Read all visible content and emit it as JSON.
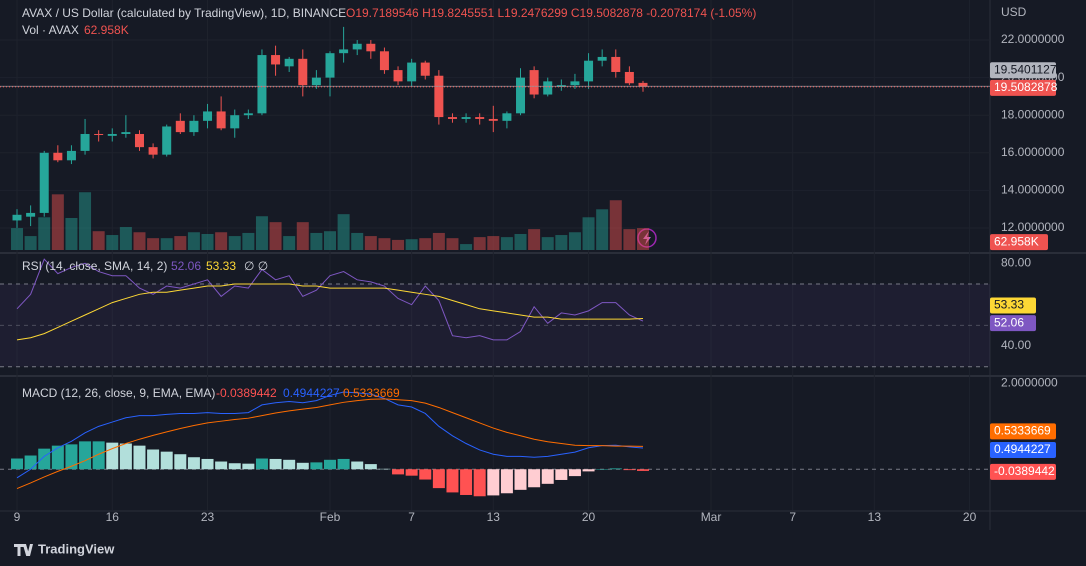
{
  "chart_data": [
    {
      "type": "candlestick",
      "title": "AVAX / US Dollar (calculated by TradingView), 1D, BINANCE",
      "legend_text": "O19.7189546 H19.8245551 L19.2476299 C19.5082878 -0.2078174 (-1.05%)",
      "currency": "USD",
      "up_color": "#26a69a",
      "down_color": "#ef5350",
      "open": [
        12.4,
        12.6,
        12.8,
        16.0,
        15.6,
        16.1,
        17.0,
        16.9,
        17.0,
        17.0,
        16.3,
        15.9,
        17.7,
        17.1,
        17.7,
        18.2,
        17.3,
        18.0,
        18.1,
        21.2,
        20.6,
        21.0,
        19.6,
        20.0,
        21.3,
        21.5,
        21.8,
        21.4,
        20.4,
        19.8,
        20.8,
        20.1,
        17.9,
        17.8,
        17.9,
        17.8,
        17.7,
        18.1,
        20.4,
        19.1,
        19.5,
        19.6,
        19.8,
        20.9,
        21.1,
        20.3,
        19.7189546
      ],
      "high": [
        13.0,
        13.2,
        16.1,
        16.4,
        16.4,
        17.8,
        17.2,
        17.3,
        18.0,
        17.2,
        16.5,
        17.5,
        18.1,
        18.0,
        18.6,
        19.0,
        18.3,
        18.3,
        21.5,
        21.7,
        21.1,
        21.5,
        20.4,
        21.4,
        22.7,
        22.0,
        22.0,
        21.6,
        20.6,
        21.0,
        20.9,
        20.4,
        18.1,
        18.1,
        18.1,
        18.5,
        18.2,
        20.5,
        20.6,
        20.0,
        19.9,
        20.2,
        21.3,
        21.5,
        21.5,
        20.6,
        19.8245551
      ],
      "low": [
        12.0,
        12.1,
        12.6,
        15.5,
        15.4,
        15.9,
        16.6,
        16.6,
        16.8,
        16.1,
        15.7,
        15.8,
        17.0,
        16.9,
        17.3,
        17.2,
        16.8,
        17.8,
        18.0,
        20.1,
        20.3,
        19.0,
        19.4,
        19.0,
        20.8,
        21.2,
        21.0,
        20.2,
        19.6,
        19.5,
        19.9,
        17.5,
        17.6,
        17.6,
        17.5,
        17.1,
        17.3,
        18.0,
        18.9,
        19.0,
        19.3,
        19.4,
        19.4,
        20.6,
        20.0,
        19.6,
        19.2476299
      ],
      "close": [
        12.7,
        12.8,
        16.0,
        15.6,
        16.1,
        17.0,
        16.95,
        17.0,
        17.1,
        16.3,
        15.9,
        17.4,
        17.1,
        17.7,
        18.2,
        17.3,
        18.0,
        18.1,
        21.2,
        20.7,
        21.0,
        19.6,
        20.0,
        21.3,
        21.5,
        21.8,
        21.4,
        20.4,
        19.8,
        20.8,
        20.1,
        17.9,
        17.8,
        17.9,
        17.8,
        17.7,
        18.1,
        20.0,
        19.1,
        19.8,
        19.6,
        19.8,
        20.9,
        21.1,
        20.3,
        19.7,
        19.5082878
      ],
      "marker_price": 19.5401127,
      "ylim": [
        10.72,
        24.13
      ],
      "yticks": [
        {
          "value": 12,
          "label": "12.0000000"
        },
        {
          "value": 14,
          "label": "14.0000000"
        },
        {
          "value": 16,
          "label": "16.0000000"
        },
        {
          "value": 18,
          "label": "18.0000000"
        },
        {
          "value": 20,
          "label": "20.0000000"
        },
        {
          "value": 22,
          "label": "22.0000000"
        }
      ],
      "xlim": [
        -1.25,
        71.5
      ],
      "xticks": [
        {
          "value": 0,
          "label": "9"
        },
        {
          "value": 7,
          "label": "16"
        },
        {
          "value": 14,
          "label": "23"
        },
        {
          "value": 23,
          "label": "Feb"
        },
        {
          "value": 29,
          "label": "7"
        },
        {
          "value": 35,
          "label": "13"
        },
        {
          "value": 42,
          "label": "20"
        },
        {
          "value": 51,
          "label": "Mar"
        },
        {
          "value": 57,
          "label": "7"
        },
        {
          "value": 63,
          "label": "13"
        },
        {
          "value": 70,
          "label": "20"
        }
      ],
      "grid": true,
      "volume": {
        "label": "Vol · AVAX",
        "last_label": "62.958K",
        "ylim": [
          0,
          250
        ],
        "values": [
          63,
          40,
          94,
          160,
          92,
          166,
          54,
          43,
          66,
          51,
          34,
          34,
          40,
          51,
          46,
          51,
          40,
          49,
          97,
          80,
          40,
          80,
          49,
          54,
          103,
          49,
          40,
          34,
          29,
          31,
          34,
          49,
          34,
          17,
          37,
          40,
          37,
          46,
          60,
          37,
          43,
          51,
          94,
          117,
          143,
          60,
          62.958
        ]
      }
    },
    {
      "type": "line",
      "title": "RSI (14, close, SMA, 14, 2)",
      "extra": "∅ ∅",
      "ylim": [
        26,
        84
      ],
      "yticks": [
        {
          "value": 80,
          "label": "80.00"
        },
        {
          "value": 40,
          "label": "40.00"
        }
      ],
      "bands": [
        70,
        50,
        30
      ],
      "band_color": "#7e57c2",
      "series": [
        {
          "color": "#7e57c2",
          "values": [
            58,
            65,
            82,
            75,
            78,
            80,
            76,
            74,
            74,
            68,
            65,
            69,
            68,
            70,
            72,
            64,
            69,
            68,
            77,
            72,
            74,
            64,
            67,
            74,
            76,
            72,
            71,
            69,
            63,
            60,
            69,
            62,
            45,
            44,
            45,
            43,
            43,
            47,
            59,
            51,
            56,
            55,
            57,
            61,
            61,
            55,
            52.06
          ]
        },
        {
          "color": "#fdd835",
          "values": [
            43,
            44,
            46,
            49,
            52,
            55,
            58,
            61,
            63,
            65,
            66,
            66,
            67,
            68,
            69,
            69,
            70,
            70,
            70,
            70,
            70,
            69,
            69,
            68,
            68,
            68,
            68,
            68,
            67,
            66,
            65,
            64,
            62,
            60,
            58,
            57,
            56,
            55,
            54,
            54,
            53,
            53,
            53,
            53,
            53,
            53,
            53.33
          ]
        }
      ]
    },
    {
      "type": "macd",
      "title": "MACD (12, 26, close, 9, EMA, EMA)",
      "ylim": [
        -0.95,
        2.15
      ],
      "yticks": [
        {
          "value": 2,
          "label": "2.0000000"
        }
      ],
      "histogram": {
        "colors": [
          "#26a69a",
          "#b2dfdb",
          "#ffcdd2",
          "#ff5252"
        ],
        "values": [
          0.25,
          0.32,
          0.48,
          0.55,
          0.58,
          0.65,
          0.65,
          0.62,
          0.6,
          0.55,
          0.46,
          0.41,
          0.35,
          0.28,
          0.24,
          0.18,
          0.14,
          0.13,
          0.25,
          0.24,
          0.22,
          0.15,
          0.16,
          0.22,
          0.24,
          0.18,
          0.12,
          0.01,
          -0.12,
          -0.15,
          -0.24,
          -0.44,
          -0.54,
          -0.6,
          -0.63,
          -0.61,
          -0.56,
          -0.48,
          -0.42,
          -0.34,
          -0.25,
          -0.16,
          -0.05,
          0.0,
          0.02,
          -0.02,
          -0.0389442
        ]
      },
      "series": [
        {
          "color": "#2962ff",
          "values": [
            -0.2,
            0.0,
            0.3,
            0.5,
            0.65,
            0.85,
            1.0,
            1.1,
            1.2,
            1.25,
            1.25,
            1.28,
            1.3,
            1.3,
            1.32,
            1.3,
            1.3,
            1.32,
            1.5,
            1.55,
            1.58,
            1.55,
            1.6,
            1.72,
            1.8,
            1.78,
            1.75,
            1.65,
            1.5,
            1.45,
            1.3,
            1.0,
            0.78,
            0.6,
            0.45,
            0.35,
            0.3,
            0.3,
            0.28,
            0.3,
            0.35,
            0.4,
            0.5,
            0.55,
            0.56,
            0.52,
            0.4944227
          ]
        },
        {
          "color": "#ff6d00",
          "values": [
            -0.45,
            -0.32,
            -0.18,
            -0.05,
            0.07,
            0.2,
            0.35,
            0.48,
            0.6,
            0.7,
            0.79,
            0.87,
            0.95,
            1.02,
            1.08,
            1.12,
            1.16,
            1.19,
            1.25,
            1.31,
            1.36,
            1.4,
            1.44,
            1.5,
            1.56,
            1.6,
            1.63,
            1.64,
            1.62,
            1.6,
            1.54,
            1.44,
            1.32,
            1.2,
            1.08,
            0.96,
            0.86,
            0.78,
            0.7,
            0.64,
            0.6,
            0.56,
            0.55,
            0.55,
            0.54,
            0.54,
            0.5333669
          ]
        }
      ]
    }
  ],
  "footer": "TradingView"
}
